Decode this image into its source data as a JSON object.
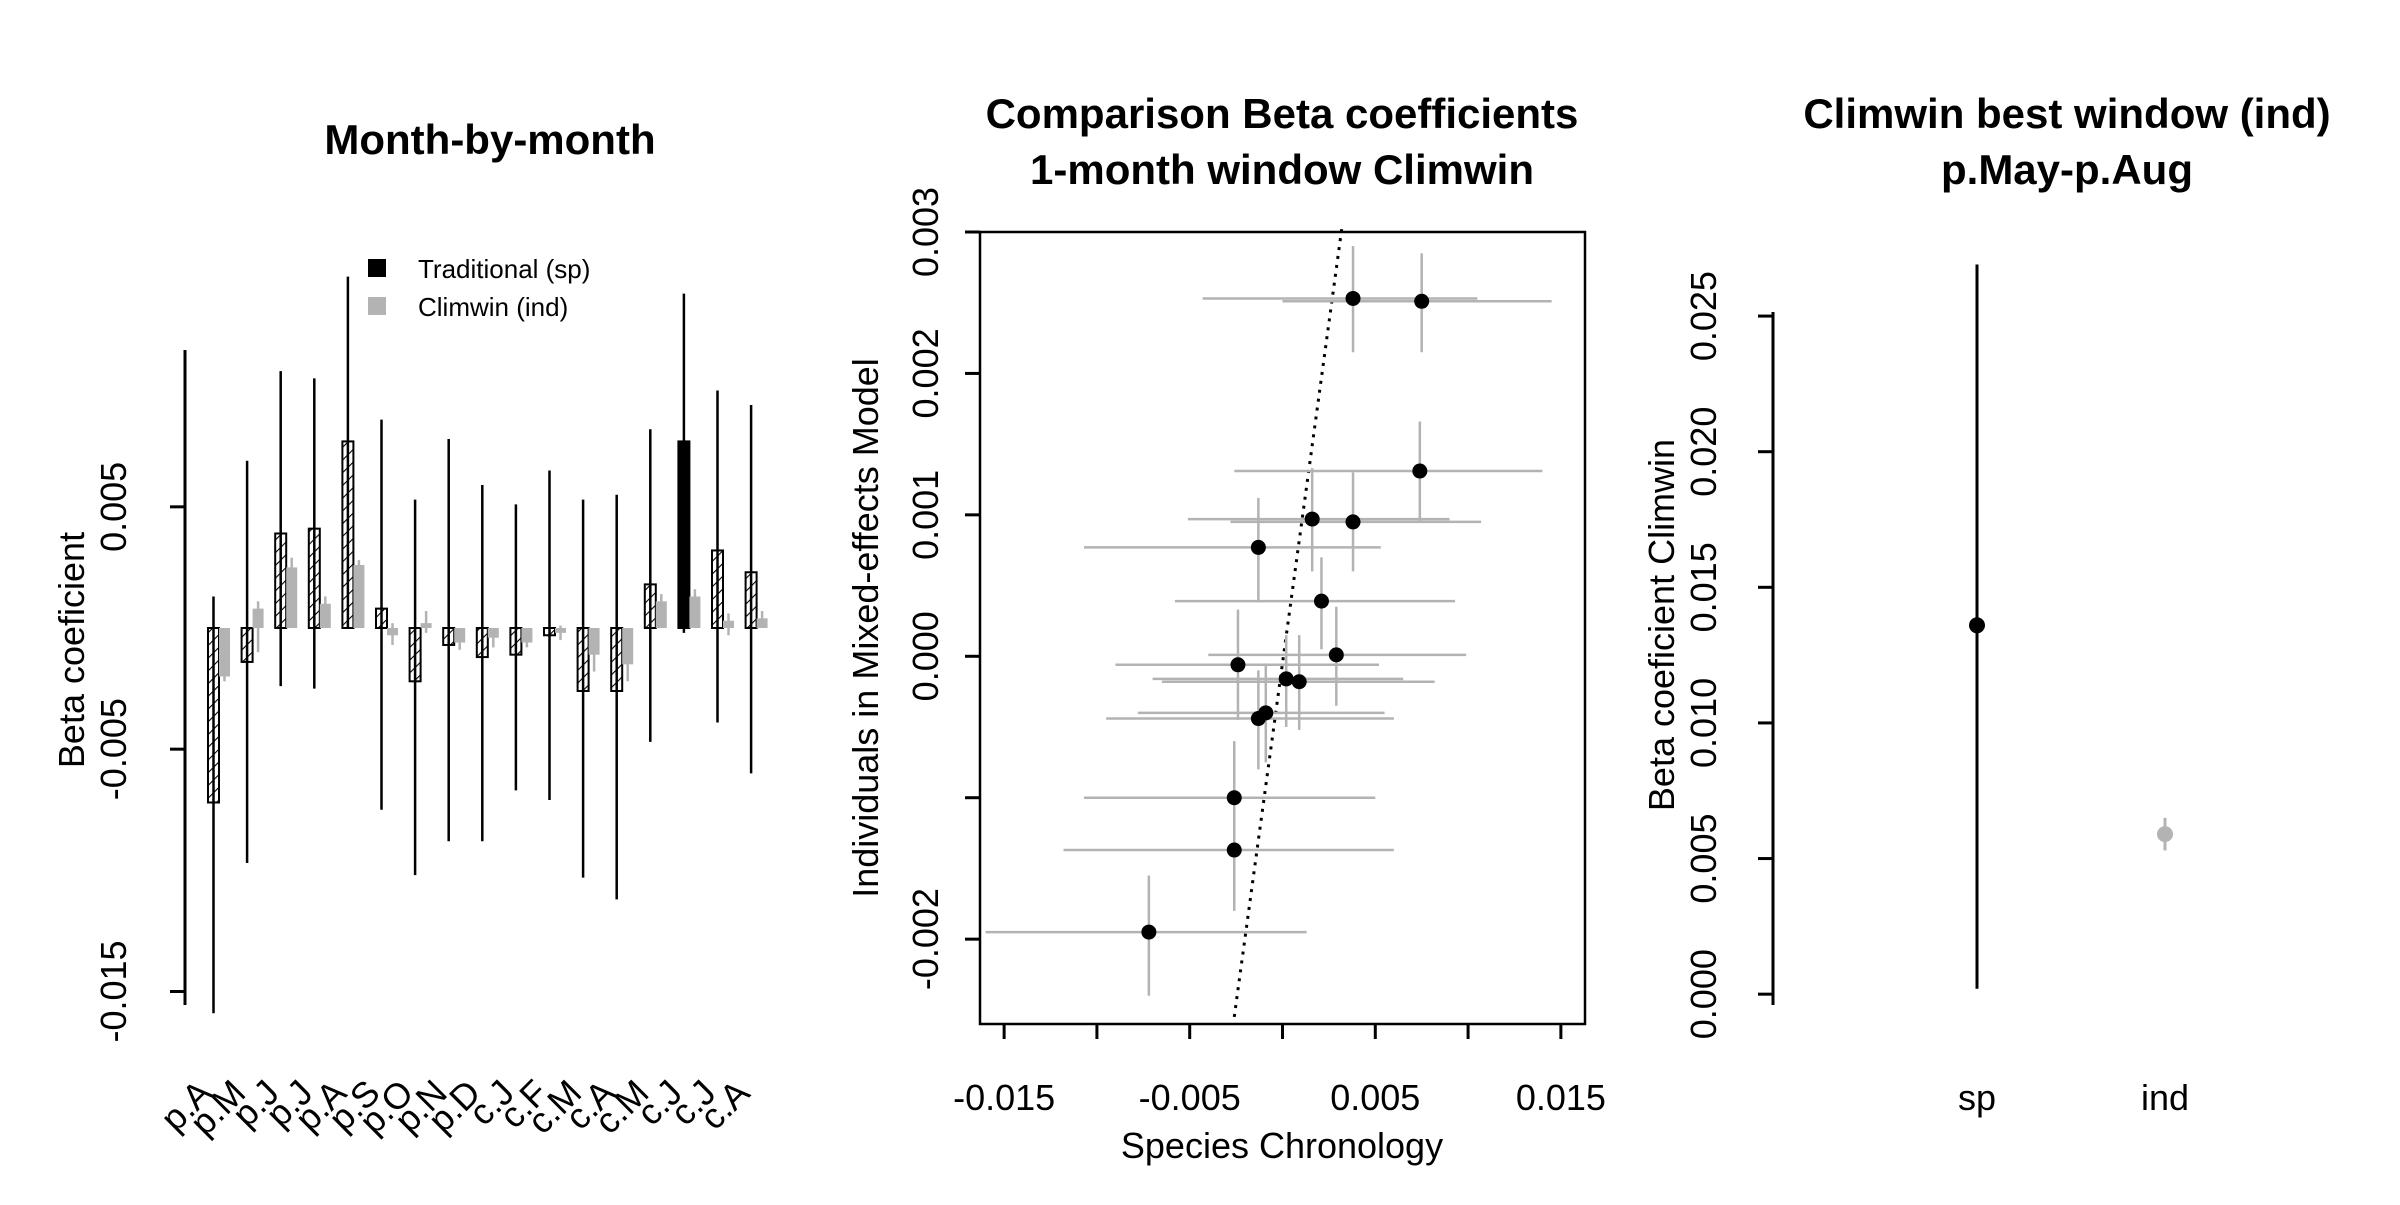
{
  "colors": {
    "traditional": "#000000",
    "climwin": "#b3b3b3",
    "axis": "#000000"
  },
  "chart_data": [
    {
      "type": "bar",
      "title": "Month-by-month",
      "ylabel": "Beta coeficient",
      "xlabel": "",
      "ylim": [
        -0.0163,
        0.0163
      ],
      "yticks": [
        -0.015,
        -0.005,
        0.005
      ],
      "ytick_labels": [
        "-0.015",
        "-0.005",
        "0.005"
      ],
      "categories": [
        "p.A",
        "p.M",
        "p.J",
        "p.J",
        "p.A",
        "p.S",
        "p.O",
        "p.N",
        "p.D",
        "c.J",
        "c.F",
        "c.M",
        "c.A",
        "c.M",
        "c.J",
        "c.J",
        "c.A"
      ],
      "series": [
        {
          "name": "Traditional (sp)",
          "values": [
            -0.0072,
            -0.0014,
            0.0039,
            0.0041,
            0.0077,
            0.0008,
            -0.0022,
            -0.0007,
            -0.0012,
            -0.0011,
            -0.0003,
            -0.0026,
            -0.0026,
            0.0018,
            0.0077,
            0.0032,
            0.0023
          ],
          "ci_low": [
            -0.0159,
            -0.0097,
            -0.0024,
            -0.0025,
            0.0,
            -0.0075,
            -0.0102,
            -0.0088,
            -0.0088,
            -0.0067,
            -0.0071,
            -0.0103,
            -0.0112,
            -0.0047,
            -0.0002,
            -0.0039,
            -0.006
          ],
          "ci_high": [
            0.0013,
            0.0069,
            0.0106,
            0.0103,
            0.0145,
            0.0086,
            0.0053,
            0.0078,
            0.0059,
            0.0051,
            0.0065,
            0.0053,
            0.0055,
            0.0082,
            0.0138,
            0.0098,
            0.0092
          ],
          "highlight_index": 14
        },
        {
          "name": "Climwin (ind)",
          "values": [
            -0.002,
            0.0008,
            0.0025,
            0.001,
            0.0026,
            -0.0003,
            0.0002,
            -0.0006,
            -0.0004,
            -0.0006,
            -0.0002,
            -0.0011,
            -0.0015,
            0.0011,
            0.0013,
            0.0003,
            0.0004
          ],
          "ci_low": [
            -0.0022,
            -0.001,
            0.0012,
            0.0006,
            0.0013,
            -0.0007,
            -0.0002,
            -0.0009,
            -0.0008,
            -0.0008,
            -0.0005,
            -0.0018,
            -0.0022,
            0.0008,
            0.0011,
            -0.0003,
            0.0001
          ],
          "ci_high": [
            -0.0018,
            0.0011,
            0.0029,
            0.0013,
            0.0028,
            0.0002,
            0.0007,
            -0.0001,
            -0.0002,
            -0.0002,
            0.0001,
            -0.0003,
            -0.0007,
            0.0014,
            0.0016,
            0.0006,
            0.0007
          ]
        }
      ],
      "legend": "top-center"
    },
    {
      "type": "scatter",
      "title": "Comparison Beta coefficients",
      "subtitle": "1-month window Climwin",
      "xlabel": "Species Chronology",
      "ylabel": "Individuals in Mixed-effects Model",
      "xlim": [
        -0.0163,
        0.0163
      ],
      "ylim": [
        -0.0026,
        0.003
      ],
      "xticks": [
        -0.015,
        -0.01,
        -0.005,
        0,
        0.005,
        0.01,
        0.015
      ],
      "xtick_labels": [
        "-0.015",
        "",
        "-0.005",
        "",
        "0.005",
        "",
        "0.015"
      ],
      "yticks": [
        -0.002,
        -0.001,
        0.0,
        0.001,
        0.002,
        0.003
      ],
      "ytick_labels": [
        "-0.002",
        "",
        "0.000",
        "0.001",
        "0.002",
        "0.003"
      ],
      "points": [
        {
          "x": 0.0038,
          "y": 0.00253,
          "xlo": -0.0043,
          "xhi": 0.0105,
          "ylo": 0.00215,
          "yhi": 0.0029
        },
        {
          "x": 0.0075,
          "y": 0.00251,
          "xlo": 0.0,
          "xhi": 0.0145,
          "ylo": 0.00215,
          "yhi": 0.00285
        },
        {
          "x": 0.0074,
          "y": 0.00131,
          "xlo": -0.0026,
          "xhi": 0.014,
          "ylo": 0.00095,
          "yhi": 0.00166
        },
        {
          "x": 0.0016,
          "y": 0.00097,
          "xlo": -0.0051,
          "xhi": 0.009,
          "ylo": 0.0006,
          "yhi": 0.00133
        },
        {
          "x": 0.0038,
          "y": 0.00095,
          "xlo": -0.0028,
          "xhi": 0.0107,
          "ylo": 0.0006,
          "yhi": 0.0013
        },
        {
          "x": -0.0013,
          "y": 0.00077,
          "xlo": -0.0107,
          "xhi": 0.0053,
          "ylo": 0.00038,
          "yhi": 0.00112
        },
        {
          "x": 0.0021,
          "y": 0.00039,
          "xlo": -0.0058,
          "xhi": 0.0093,
          "ylo": 5e-05,
          "yhi": 0.0007
        },
        {
          "x": 0.0029,
          "y": 1e-05,
          "xlo": -0.004,
          "xhi": 0.0099,
          "ylo": -0.00035,
          "yhi": 0.00035
        },
        {
          "x": -0.0024,
          "y": -6e-05,
          "xlo": -0.009,
          "xhi": 0.0052,
          "ylo": -0.00045,
          "yhi": 0.00033
        },
        {
          "x": 0.0002,
          "y": -0.00016,
          "xlo": -0.007,
          "xhi": 0.0065,
          "ylo": -0.0005,
          "yhi": 0.00015
        },
        {
          "x": 0.0009,
          "y": -0.00018,
          "xlo": -0.0065,
          "xhi": 0.0082,
          "ylo": -0.00052,
          "yhi": 0.00015
        },
        {
          "x": -0.0009,
          "y": -0.0004,
          "xlo": -0.0078,
          "xhi": 0.0055,
          "ylo": -0.00075,
          "yhi": -5e-05
        },
        {
          "x": -0.0013,
          "y": -0.00044,
          "xlo": -0.0095,
          "xhi": 0.006,
          "ylo": -0.0008,
          "yhi": -0.0001
        },
        {
          "x": -0.0026,
          "y": -0.001,
          "xlo": -0.0107,
          "xhi": 0.005,
          "ylo": -0.0014,
          "yhi": -0.0006
        },
        {
          "x": -0.0026,
          "y": -0.00137,
          "xlo": -0.0118,
          "xhi": 0.006,
          "ylo": -0.0018,
          "yhi": -0.00095
        },
        {
          "x": -0.0072,
          "y": -0.00195,
          "xlo": -0.016,
          "xhi": 0.0013,
          "ylo": -0.0024,
          "yhi": -0.00155
        }
      ],
      "fit_line": {
        "x1": -0.0026,
        "y1": -0.00255,
        "x2": 0.0032,
        "y2": 0.00303,
        "style": "dotted"
      }
    },
    {
      "type": "scatter",
      "title": "Climwin best window (ind)",
      "subtitle": "p.May-p.Aug",
      "xlabel": "",
      "ylabel": "Beta coeficient Climwin",
      "ylim": [
        -0.0011,
        0.0281
      ],
      "yticks": [
        0.0,
        0.005,
        0.01,
        0.015,
        0.02,
        0.025
      ],
      "ytick_labels": [
        "0.000",
        "0.005",
        "0.010",
        "0.015",
        "0.020",
        "0.025"
      ],
      "categories": [
        "sp",
        "ind"
      ],
      "values": [
        0.0136,
        0.0059
      ],
      "ci_low": [
        0.0002,
        0.0053
      ],
      "ci_high": [
        0.0269,
        0.0065
      ],
      "point_colors": [
        "#000000",
        "#b3b3b3"
      ]
    }
  ]
}
